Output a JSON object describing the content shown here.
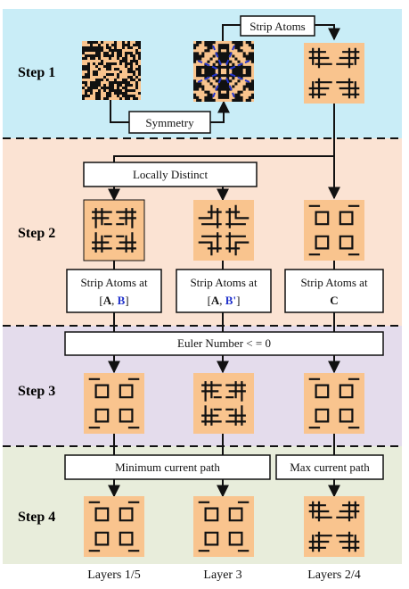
{
  "steps": [
    {
      "label": "Step 1",
      "color": "#c9edf7"
    },
    {
      "label": "Step 2",
      "color": "#fbe3d3"
    },
    {
      "label": "Step 3",
      "color": "#e4dcec"
    },
    {
      "label": "Step 4",
      "color": "#e8eddb"
    }
  ],
  "boxes": {
    "strip_atoms": "Strip Atoms",
    "symmetry": "Symmetry",
    "locally_distinct": "Locally Distinct",
    "strip_ab_line1": "Strip Atoms at",
    "strip_ab_open": "[",
    "strip_ab_a": "A",
    "strip_ab_sep": ", ",
    "strip_ab_b": "B",
    "strip_ab_close": "]",
    "strip_abp_line1": "Strip Atoms at",
    "strip_abp_open": "[",
    "strip_abp_a": "A",
    "strip_abp_sep": ", ",
    "strip_abp_b": "B'",
    "strip_abp_close": "]",
    "strip_c_line1": "Strip Atoms at",
    "strip_c_line2": "C",
    "euler": "Euler Number < = 0",
    "min_path": "Minimum current path",
    "max_path": "Max current path"
  },
  "layers": [
    "Layers 1/5",
    "Layer 3",
    "Layers 2/4"
  ],
  "colors": {
    "tile": "#f9c48e",
    "ink": "#111111",
    "accent_blue": "#2233cc"
  }
}
